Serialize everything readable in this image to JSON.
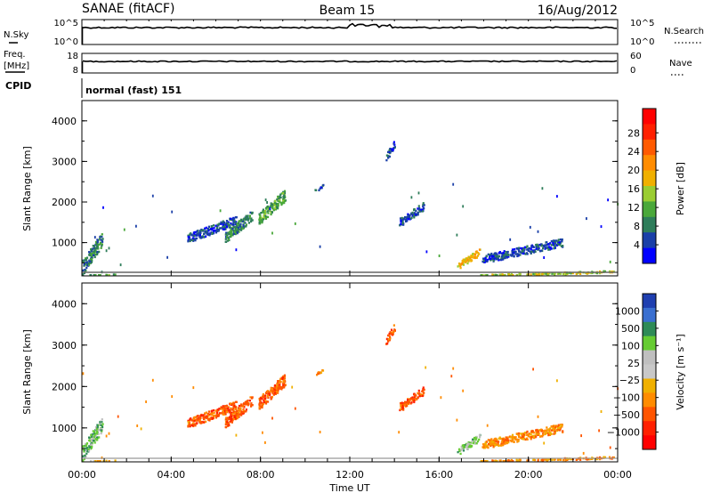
{
  "header": {
    "station": "SANAE (fitACF)",
    "beam": "Beam 15",
    "date": "16/Aug/2012"
  },
  "top_panels": {
    "nsky_label": "N.Sky",
    "nsearch_label": "N.Search",
    "nsky_ticks": [
      "10^5",
      "10^0"
    ],
    "nsearch_ticks": [
      "10^5",
      "10^0"
    ],
    "freq_label_1": "Freq.",
    "freq_label_2": "[MHz]",
    "freq_ticks": [
      "18",
      "8"
    ],
    "nave_label": "Nave",
    "nave_ticks": [
      "60",
      "0"
    ],
    "cpid_label": "CPID",
    "cpid_value": "normal (fast) 151"
  },
  "chart_data": [
    {
      "type": "heatmap",
      "title": "",
      "xlabel": "Time UT",
      "ylabel": "Slant Range [km]",
      "xlim_hours": [
        0,
        24
      ],
      "ylim_km": [
        180,
        4500
      ],
      "x_tick_labels": [
        "00:00",
        "04:00",
        "08:00",
        "12:00",
        "16:00",
        "20:00",
        "00:00"
      ],
      "y_tick_values": [
        1000,
        2000,
        3000,
        4000
      ],
      "colorbar": {
        "label": "Power [dB]",
        "tick_labels": [
          "4",
          "8",
          "12",
          "16",
          "20",
          "24",
          "28"
        ],
        "colors": [
          "#0000ff",
          "#1a3fa8",
          "#2e7d5a",
          "#4aa83a",
          "#9acd32",
          "#f0b000",
          "#ff8c00",
          "#ff5a00",
          "#ff2000",
          "#ff0000"
        ]
      },
      "echo_regions": [
        {
          "t": [
            0.0,
            0.9
          ],
          "r": [
            200,
            1250
          ],
          "level": 2
        },
        {
          "t": [
            0.3,
            1.5
          ],
          "r": [
            180,
            260
          ],
          "level": 3
        },
        {
          "t": [
            4.7,
            6.9
          ],
          "r": [
            1000,
            1650
          ],
          "level": 1
        },
        {
          "t": [
            6.4,
            7.6
          ],
          "r": [
            1000,
            1800
          ],
          "level": 2
        },
        {
          "t": [
            7.9,
            9.1
          ],
          "r": [
            1450,
            2300
          ],
          "level": 3
        },
        {
          "t": [
            10.4,
            10.8
          ],
          "r": [
            2250,
            2450
          ],
          "level": 1
        },
        {
          "t": [
            13.6,
            14.0
          ],
          "r": [
            3000,
            3550
          ],
          "level": 1
        },
        {
          "t": [
            14.2,
            15.3
          ],
          "r": [
            1400,
            2000
          ],
          "level": 1
        },
        {
          "t": [
            16.8,
            17.8
          ],
          "r": [
            350,
            850
          ],
          "level": 5
        },
        {
          "t": [
            17.8,
            23.8
          ],
          "r": [
            180,
            320
          ],
          "level": 4
        },
        {
          "t": [
            17.9,
            21.5
          ],
          "r": [
            500,
            1100
          ],
          "level": 1
        }
      ]
    },
    {
      "type": "heatmap",
      "title": "",
      "xlabel": "Time UT",
      "ylabel": "Slant Range [km]",
      "xlim_hours": [
        0,
        24
      ],
      "ylim_km": [
        180,
        4500
      ],
      "x_tick_labels": [
        "00:00",
        "04:00",
        "08:00",
        "12:00",
        "16:00",
        "20:00",
        "00:00"
      ],
      "y_tick_values": [
        1000,
        2000,
        3000,
        4000
      ],
      "colorbar": {
        "label": "Velocity [m s⁻¹]",
        "tick_labels": [
          "1000",
          "500",
          "100",
          "25",
          "−25",
          "−100",
          "−500",
          "−1000"
        ],
        "colors": [
          "#1f3fb0",
          "#3a6fd0",
          "#2e8b57",
          "#66cc33",
          "#bfbfbf",
          "#c8c8c8",
          "#f0b000",
          "#ff8c00",
          "#ff5500",
          "#ff2000",
          "#ff0000"
        ]
      },
      "echo_regions": [
        {
          "t": [
            0.0,
            0.9
          ],
          "r": [
            200,
            1250
          ],
          "level": 3
        },
        {
          "t": [
            0.3,
            1.5
          ],
          "r": [
            180,
            260
          ],
          "level": 6
        },
        {
          "t": [
            4.7,
            6.9
          ],
          "r": [
            1000,
            1650
          ],
          "level": 8
        },
        {
          "t": [
            6.4,
            7.6
          ],
          "r": [
            1000,
            1800
          ],
          "level": 8
        },
        {
          "t": [
            7.9,
            9.1
          ],
          "r": [
            1450,
            2300
          ],
          "level": 8
        },
        {
          "t": [
            10.4,
            10.8
          ],
          "r": [
            2250,
            2450
          ],
          "level": 7
        },
        {
          "t": [
            13.6,
            14.0
          ],
          "r": [
            3000,
            3550
          ],
          "level": 8
        },
        {
          "t": [
            14.2,
            15.3
          ],
          "r": [
            1400,
            2000
          ],
          "level": 8
        },
        {
          "t": [
            16.8,
            17.8
          ],
          "r": [
            350,
            850
          ],
          "level": 3
        },
        {
          "t": [
            17.8,
            23.8
          ],
          "r": [
            180,
            320
          ],
          "level": 7
        },
        {
          "t": [
            17.9,
            21.5
          ],
          "r": [
            500,
            1100
          ],
          "level": 7
        }
      ]
    }
  ]
}
